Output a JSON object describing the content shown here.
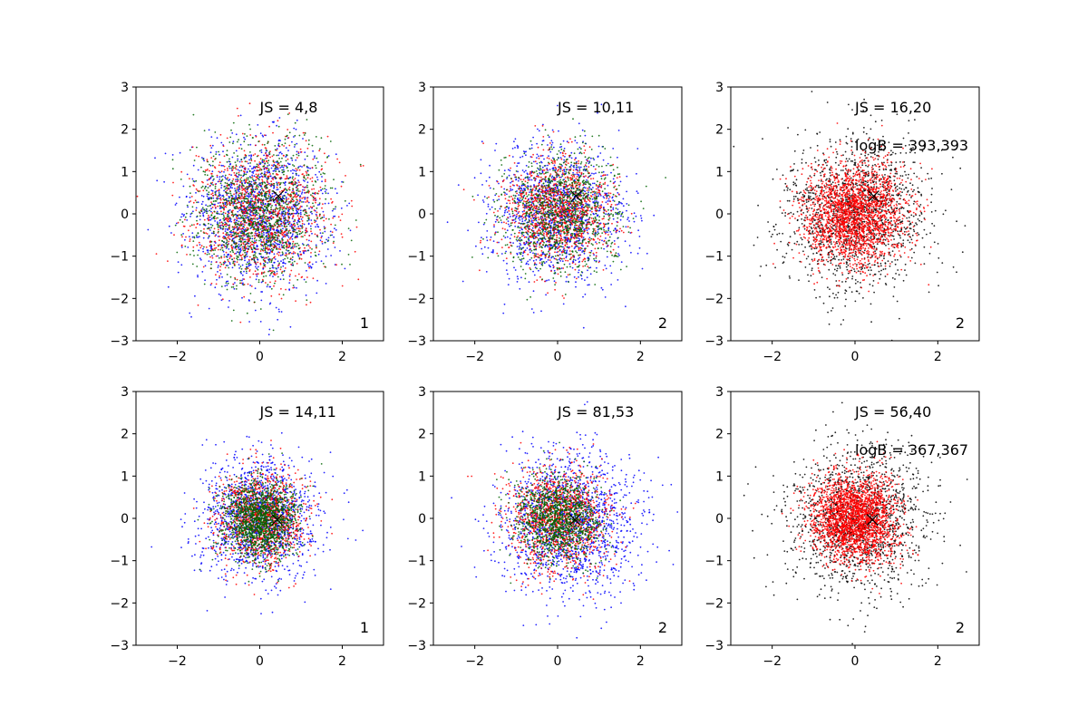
{
  "chart_data": [
    {
      "type": "scatter",
      "panel": 1,
      "xlim": [
        -3,
        3
      ],
      "ylim": [
        -3,
        3
      ],
      "xticks": [
        -2,
        0,
        2
      ],
      "yticks": [
        -3,
        -2,
        -1,
        0,
        1,
        2,
        3
      ],
      "annotation_js": "JS = 4,8",
      "annotation_logb": "",
      "corner_label": "1",
      "marker_x": {
        "x": 0.45,
        "y": 0.42
      },
      "series": [
        {
          "color": "#0000ff",
          "n": 1400,
          "mean": [
            0,
            0
          ],
          "sd": [
            0.85,
            0.85
          ]
        },
        {
          "color": "#ff0000",
          "n": 1200,
          "mean": [
            0,
            0
          ],
          "sd": [
            0.8,
            0.8
          ]
        },
        {
          "color": "#006400",
          "n": 1200,
          "mean": [
            0,
            0
          ],
          "sd": [
            0.8,
            0.8
          ]
        }
      ]
    },
    {
      "type": "scatter",
      "panel": 2,
      "xlim": [
        -3,
        3
      ],
      "ylim": [
        -3,
        3
      ],
      "xticks": [
        -2,
        0,
        2
      ],
      "yticks": [
        -3,
        -2,
        -1,
        0,
        1,
        2,
        3
      ],
      "annotation_js": "JS = 10,11",
      "annotation_logb": "",
      "corner_label": "2",
      "marker_x": {
        "x": 0.45,
        "y": 0.42
      },
      "series": [
        {
          "color": "#0000ff",
          "n": 1300,
          "mean": [
            0,
            0
          ],
          "sd": [
            0.8,
            0.8
          ]
        },
        {
          "color": "#ff0000",
          "n": 1200,
          "mean": [
            0,
            0.05
          ],
          "sd": [
            0.65,
            0.65
          ]
        },
        {
          "color": "#006400",
          "n": 1100,
          "mean": [
            0.1,
            0
          ],
          "sd": [
            0.7,
            0.7
          ]
        }
      ]
    },
    {
      "type": "scatter",
      "panel": 3,
      "xlim": [
        -3,
        3
      ],
      "ylim": [
        -3,
        3
      ],
      "xticks": [
        -2,
        0,
        2
      ],
      "yticks": [
        -3,
        -2,
        -1,
        0,
        1,
        2,
        3
      ],
      "annotation_js": "JS = 16,20",
      "annotation_logb": "logB = 393,393",
      "corner_label": "2",
      "marker_x": {
        "x": 0.45,
        "y": 0.42
      },
      "series": [
        {
          "color": "#000000",
          "n": 1500,
          "mean": [
            0,
            0
          ],
          "sd": [
            0.9,
            0.9
          ]
        },
        {
          "color": "#ff0000",
          "n": 2200,
          "mean": [
            0,
            0
          ],
          "sd": [
            0.6,
            0.6
          ]
        }
      ]
    },
    {
      "type": "scatter",
      "panel": 4,
      "xlim": [
        -3,
        3
      ],
      "ylim": [
        -3,
        3
      ],
      "xticks": [
        -2,
        0,
        2
      ],
      "yticks": [
        -3,
        -2,
        -1,
        0,
        1,
        2,
        3
      ],
      "annotation_js": "JS = 14,11",
      "annotation_logb": "",
      "corner_label": "1",
      "marker_x": {
        "x": 0.42,
        "y": -0.03
      },
      "series": [
        {
          "color": "#0000ff",
          "n": 1400,
          "mean": [
            0,
            0
          ],
          "sd": [
            0.7,
            0.7
          ]
        },
        {
          "color": "#ff0000",
          "n": 1100,
          "mean": [
            0,
            0
          ],
          "sd": [
            0.55,
            0.55
          ]
        },
        {
          "color": "#006400",
          "n": 1400,
          "mean": [
            0,
            0
          ],
          "sd": [
            0.45,
            0.45
          ]
        }
      ]
    },
    {
      "type": "scatter",
      "panel": 5,
      "xlim": [
        -3,
        3
      ],
      "ylim": [
        -3,
        3
      ],
      "xticks": [
        -2,
        0,
        2
      ],
      "yticks": [
        -3,
        -2,
        -1,
        0,
        1,
        2,
        3
      ],
      "annotation_js": "JS = 81,53",
      "annotation_logb": "",
      "corner_label": "2",
      "marker_x": {
        "x": 0.42,
        "y": -0.03
      },
      "series": [
        {
          "color": "#0000ff",
          "n": 1500,
          "mean": [
            0.3,
            -0.1
          ],
          "sd": [
            0.85,
            0.85
          ]
        },
        {
          "color": "#ff0000",
          "n": 1200,
          "mean": [
            0,
            0
          ],
          "sd": [
            0.6,
            0.6
          ]
        },
        {
          "color": "#006400",
          "n": 1200,
          "mean": [
            0,
            0
          ],
          "sd": [
            0.5,
            0.5
          ]
        }
      ]
    },
    {
      "type": "scatter",
      "panel": 6,
      "xlim": [
        -3,
        3
      ],
      "ylim": [
        -3,
        3
      ],
      "xticks": [
        -2,
        0,
        2
      ],
      "yticks": [
        -3,
        -2,
        -1,
        0,
        1,
        2,
        3
      ],
      "annotation_js": "JS = 56,40",
      "annotation_logb": "logB = 367,367",
      "corner_label": "2",
      "marker_x": {
        "x": 0.42,
        "y": -0.03
      },
      "series": [
        {
          "color": "#000000",
          "n": 1500,
          "mean": [
            0.1,
            0
          ],
          "sd": [
            0.85,
            0.85
          ]
        },
        {
          "color": "#ff0000",
          "n": 2400,
          "mean": [
            0,
            0
          ],
          "sd": [
            0.5,
            0.5
          ]
        }
      ]
    }
  ]
}
